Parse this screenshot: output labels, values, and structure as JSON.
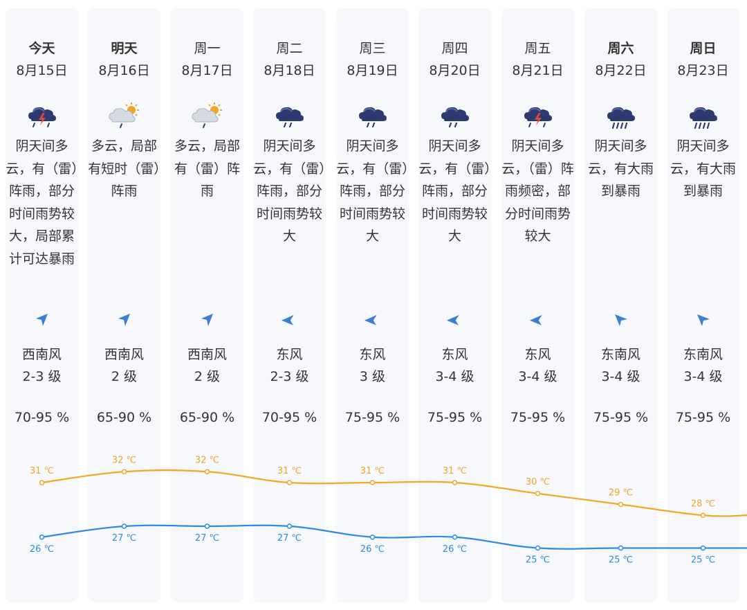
{
  "days": [
    {
      "label": "今天",
      "date": "8月15日",
      "icon": "thunderstorm-icon",
      "desc": "阴天间多云，有（雷）阵雨，部分时间雨势较大，局部累计可达暴雨",
      "wind_dir": "西南风",
      "wind_level": "2-3 级",
      "wind_arrow": "arrow-northeast-icon",
      "humidity": "70-95 %",
      "bold": true
    },
    {
      "label": "明天",
      "date": "8月16日",
      "icon": "partly-cloudy-rain-icon",
      "desc": "多云，局部有短时（雷）阵雨",
      "wind_dir": "西南风",
      "wind_level": "2 级",
      "wind_arrow": "arrow-northeast-icon",
      "humidity": "65-90 %",
      "bold": true
    },
    {
      "label": "周一",
      "date": "8月17日",
      "icon": "partly-cloudy-rain-icon",
      "desc": "多云，局部有（雷）阵雨",
      "wind_dir": "西南风",
      "wind_level": "2 级",
      "wind_arrow": "arrow-northeast-icon",
      "humidity": "65-90 %",
      "bold": false
    },
    {
      "label": "周二",
      "date": "8月18日",
      "icon": "rain-cloud-icon",
      "desc": "阴天间多云，有（雷）阵雨，部分时间雨势较大",
      "wind_dir": "东风",
      "wind_level": "2-3 级",
      "wind_arrow": "arrow-west-icon",
      "humidity": "70-95 %",
      "bold": false
    },
    {
      "label": "周三",
      "date": "8月19日",
      "icon": "rain-cloud-icon",
      "desc": "阴天间多云，有（雷）阵雨，部分时间雨势较大",
      "wind_dir": "东风",
      "wind_level": "3 级",
      "wind_arrow": "arrow-west-icon",
      "humidity": "75-95 %",
      "bold": false
    },
    {
      "label": "周四",
      "date": "8月20日",
      "icon": "rain-cloud-icon",
      "desc": "阴天间多云，有（雷）阵雨，部分时间雨势较大",
      "wind_dir": "东风",
      "wind_level": "3-4 级",
      "wind_arrow": "arrow-west-icon",
      "humidity": "75-95 %",
      "bold": false
    },
    {
      "label": "周五",
      "date": "8月21日",
      "icon": "thunderstorm-icon",
      "desc": "阴天间多云，（雷）阵雨频密，部分时间雨势较大",
      "wind_dir": "东风",
      "wind_level": "3-4 级",
      "wind_arrow": "arrow-west-icon",
      "humidity": "75-95 %",
      "bold": false
    },
    {
      "label": "周六",
      "date": "8月22日",
      "icon": "heavy-rain-icon",
      "desc": "阴天间多云，有大雨到暴雨",
      "wind_dir": "东南风",
      "wind_level": "3-4 级",
      "wind_arrow": "arrow-northwest-icon",
      "humidity": "75-95 %",
      "bold": true
    },
    {
      "label": "周日",
      "date": "8月23日",
      "icon": "heavy-rain-icon",
      "desc": "阴天间多云，有大雨到暴雨",
      "wind_dir": "东南风",
      "wind_level": "3-4 级",
      "wind_arrow": "arrow-northwest-icon",
      "humidity": "75-95 %",
      "bold": true
    }
  ],
  "chart_data": {
    "type": "line",
    "categories": [
      "8月15日",
      "8月16日",
      "8月17日",
      "8月18日",
      "8月19日",
      "8月20日",
      "8月21日",
      "8月22日",
      "8月23日"
    ],
    "series": [
      {
        "values": [
          31,
          32,
          32,
          31,
          31,
          31,
          30,
          29,
          28
        ],
        "color": "#f5a623"
      },
      {
        "values": [
          26,
          27,
          27,
          27,
          26,
          26,
          25,
          25,
          25
        ],
        "color": "#2e8ae6"
      }
    ],
    "unit": "℃",
    "ylim": [
      23,
      35
    ],
    "grid": false
  },
  "colors": {
    "high": "#f5a623",
    "low": "#2e8ae6",
    "column_bg": "#f6f8fc",
    "arrow": "#3b7fd0",
    "cloud_dark": "#2d3a70",
    "cloud_light": "#d7dbe3",
    "sun": "#f5a623",
    "bolt": "#e8453c"
  }
}
